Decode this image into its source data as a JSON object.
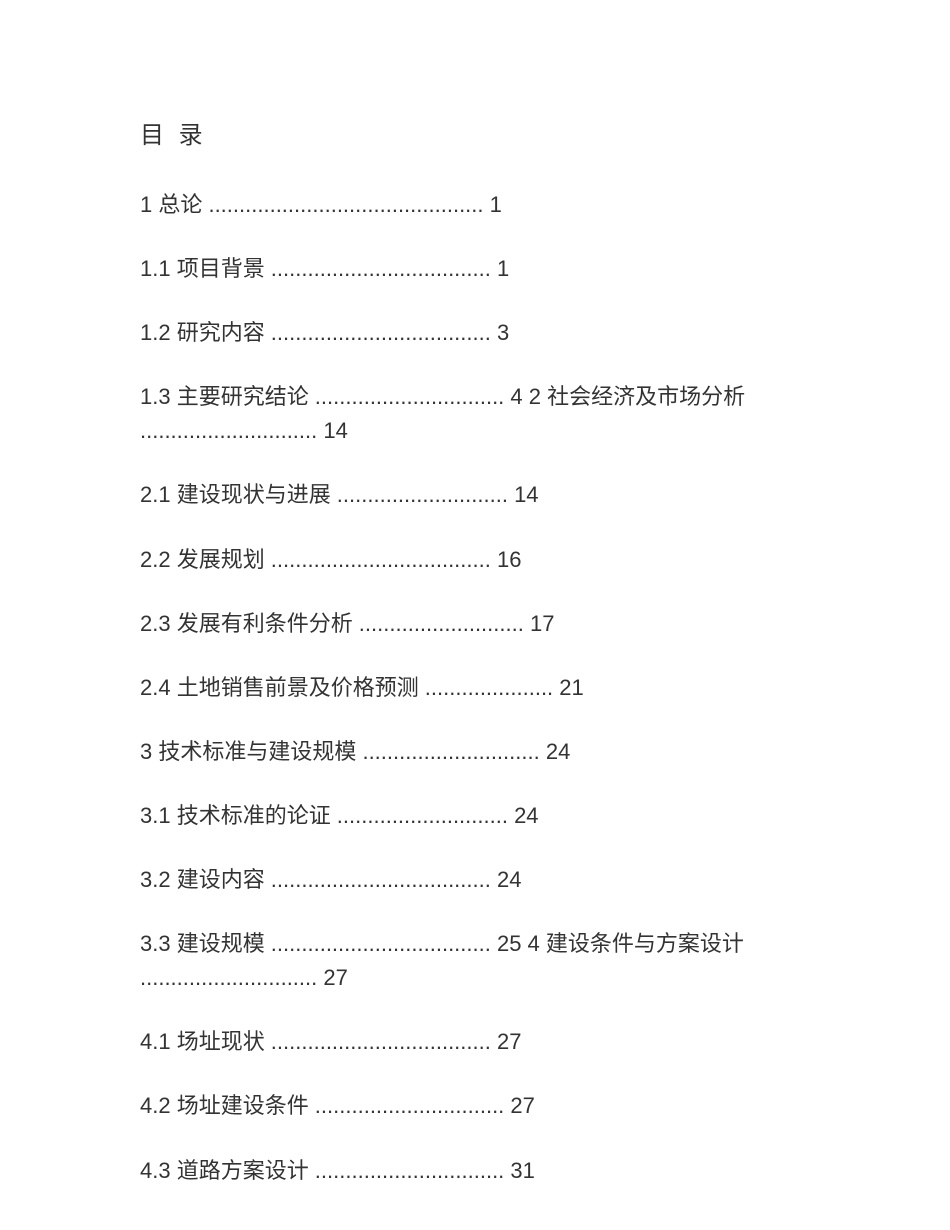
{
  "title": "目 录",
  "entries": [
    "1 总论 ............................................. 1",
    "1.1 项目背景 .................................... 1",
    "1.2 研究内容 .................................... 3",
    "1.3 主要研究结论 ............................... 4 2 社会经济及市场分析 ............................. 14",
    "2.1 建设现状与进展 ............................ 14",
    "2.2 发展规划 .................................... 16",
    "2.3 发展有利条件分析 ........................... 17",
    "2.4 土地销售前景及价格预测 ..................... 21",
    "3 技术标准与建设规模 ............................. 24",
    "3.1 技术标准的论证 ............................ 24",
    "3.2 建设内容 .................................... 24",
    "3.3 建设规模 .................................... 25 4 建设条件与方案设计 ............................. 27",
    "4.1 场址现状 .................................... 27",
    "4.2 场址建设条件 ............................... 27",
    "4.3 道路方案设计 ............................... 31"
  ],
  "colors": {
    "background": "#ffffff",
    "text": "#333333"
  },
  "typography": {
    "title_fontsize": 24,
    "entry_fontsize": 22,
    "font_family": "Microsoft YaHei"
  }
}
